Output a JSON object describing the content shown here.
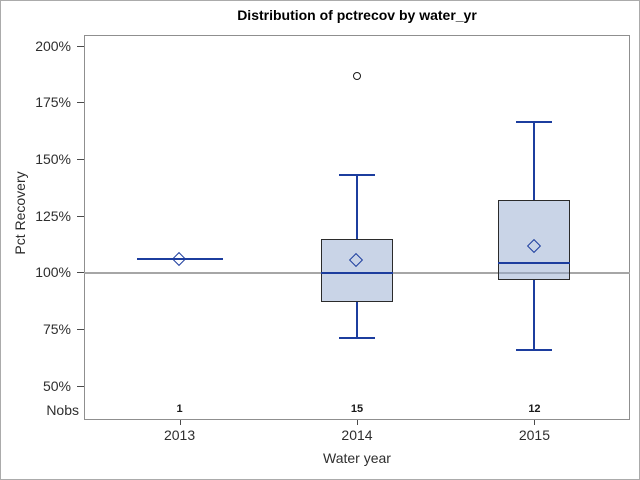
{
  "figure": {
    "title": "Distribution of pctrecov by water_yr",
    "y_axis_label": "Pct Recovery",
    "x_axis_label": "Water year",
    "nobs_label": "Nobs"
  },
  "chart_data": {
    "type": "boxplot",
    "title": "Distribution of pctrecov by water_yr",
    "xlabel": "Water year",
    "ylabel": "Pct Recovery",
    "ylim": [
      35,
      205
    ],
    "y_ticks": [
      200,
      175,
      150,
      125,
      100,
      75,
      50
    ],
    "y_tick_labels": [
      "200%",
      "175%",
      "150%",
      "125%",
      "100%",
      "75%",
      "50%"
    ],
    "reference_line": 100,
    "grid": "off",
    "legend": "none",
    "categories": [
      "2013",
      "2014",
      "2015"
    ],
    "nobs": [
      1,
      15,
      12
    ],
    "groups": [
      {
        "category": "2013",
        "nobs": 1,
        "min": 106,
        "q1": 106,
        "median": 106,
        "q3": 106,
        "max": 106,
        "mean": 106,
        "outliers": []
      },
      {
        "category": "2014",
        "nobs": 15,
        "min": 71,
        "q1": 87,
        "median": 100,
        "q3": 115,
        "max": 143,
        "mean": 105.5,
        "outliers": [
          186.5
        ]
      },
      {
        "category": "2015",
        "nobs": 12,
        "min": 66,
        "q1": 97,
        "median": 104.3,
        "q3": 132,
        "max": 166.5,
        "mean": 111.5,
        "outliers": []
      }
    ]
  },
  "colors": {
    "line_blue": "#1c3d9e",
    "box_fill": "rgba(147,169,207,0.5)",
    "box_border": "#2b2b2b",
    "reference_line": "#a6a6a6",
    "axis_border": "#8f8f8f",
    "tick": "#4a4a4a",
    "outlier": "#1a1a1a"
  }
}
